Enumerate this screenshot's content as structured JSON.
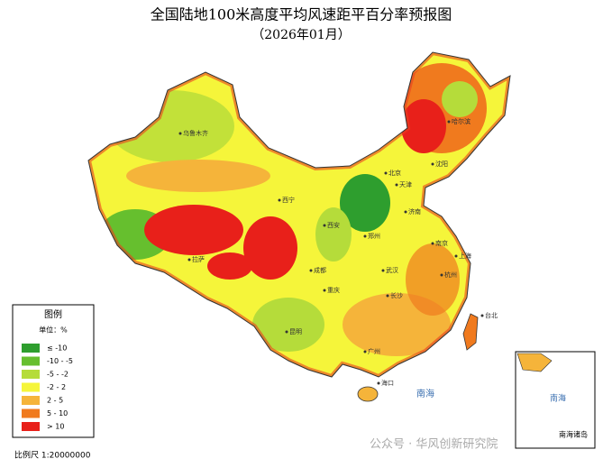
{
  "header": {
    "title": "全国陆地100米高度平均风速距平百分率预报图",
    "subtitle": "（2026年01月）"
  },
  "legend": {
    "title": "图例",
    "unit": "单位：%",
    "items": [
      {
        "label": "≤ -10",
        "color": "#2e9e2e"
      },
      {
        "label": "-10 - -5",
        "color": "#66bf2e"
      },
      {
        "label": "-5 - -2",
        "color": "#b5dc3a"
      },
      {
        "label": "-2 - 2",
        "color": "#f5f53a"
      },
      {
        "label": "2 - 5",
        "color": "#f5b43a"
      },
      {
        "label": "5 - 10",
        "color": "#f07a1e"
      },
      {
        "label": "> 10",
        "color": "#e8201a"
      }
    ]
  },
  "cities": [
    "乌鲁木齐",
    "北京",
    "天津",
    "济南",
    "郑州",
    "西安",
    "成都",
    "重庆",
    "武汉",
    "南京",
    "上海",
    "杭州",
    "长沙",
    "昆明",
    "广州",
    "台北",
    "海口",
    "拉萨",
    "西宁",
    "沈阳",
    "哈尔滨"
  ],
  "sea": {
    "main": "南海",
    "inset": "南海",
    "islands": "南海诸岛"
  },
  "scale": "比例尺 1:20000000",
  "watermark": "公众号 · 华风创新研究院"
}
